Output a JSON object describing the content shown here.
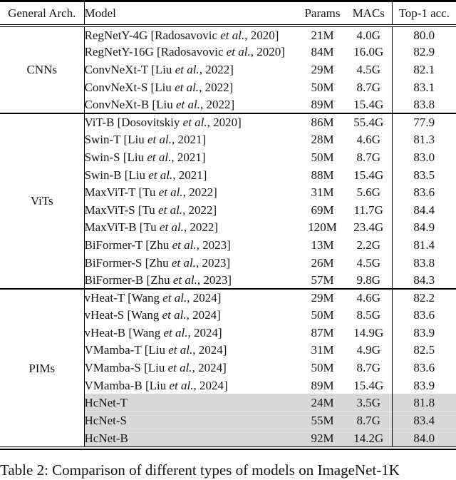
{
  "caption": "Table 2: Comparison of different types of models on ImageNet-1K",
  "citation_format": {
    "et_al": "et al."
  },
  "colors": {
    "highlight_row": "#d8d8d8",
    "rule": "#000000",
    "text": "#151515",
    "background": "#ffffff"
  },
  "table": {
    "headers": {
      "arch": "General Arch.",
      "model": "Model",
      "params": "Params",
      "macs": "MACs",
      "top1": "Top-1 acc."
    },
    "sections": [
      {
        "arch": "CNNs",
        "rows": [
          {
            "model": "RegNetY-4G",
            "author": "Radosavovic",
            "year": "2020",
            "params": "21M",
            "macs": "4.0G",
            "top1": "80.0",
            "highlight": false
          },
          {
            "model": "RegNetY-16G",
            "author": "Radosavovic",
            "year": "2020",
            "params": "84M",
            "macs": "16.0G",
            "top1": "82.9",
            "highlight": false
          },
          {
            "model": "ConvNeXt-T",
            "author": "Liu",
            "year": "2022",
            "params": "29M",
            "macs": "4.5G",
            "top1": "82.1",
            "highlight": false
          },
          {
            "model": "ConvNeXt-S",
            "author": "Liu",
            "year": "2022",
            "params": "50M",
            "macs": "8.7G",
            "top1": "83.1",
            "highlight": false
          },
          {
            "model": "ConvNeXt-B",
            "author": "Liu",
            "year": "2022",
            "params": "89M",
            "macs": "15.4G",
            "top1": "83.8",
            "highlight": false
          }
        ]
      },
      {
        "arch": "ViTs",
        "rows": [
          {
            "model": "ViT-B",
            "author": "Dosovitskiy",
            "year": "2020",
            "params": "86M",
            "macs": "55.4G",
            "top1": "77.9",
            "highlight": false
          },
          {
            "model": "Swin-T",
            "author": "Liu",
            "year": "2021",
            "params": "28M",
            "macs": "4.6G",
            "top1": "81.3",
            "highlight": false
          },
          {
            "model": "Swin-S",
            "author": "Liu",
            "year": "2021",
            "params": "50M",
            "macs": "8.7G",
            "top1": "83.0",
            "highlight": false
          },
          {
            "model": "Swin-B",
            "author": "Liu",
            "year": "2021",
            "params": "88M",
            "macs": "15.4G",
            "top1": "83.5",
            "highlight": false
          },
          {
            "model": "MaxViT-T",
            "author": "Tu",
            "year": "2022",
            "params": "31M",
            "macs": "5.6G",
            "top1": "83.6",
            "highlight": false
          },
          {
            "model": "MaxViT-S",
            "author": "Tu",
            "year": "2022",
            "params": "69M",
            "macs": "11.7G",
            "top1": "84.4",
            "highlight": false
          },
          {
            "model": "MaxViT-B",
            "author": "Tu",
            "year": "2022",
            "params": "120M",
            "macs": "23.4G",
            "top1": "84.9",
            "highlight": false
          },
          {
            "model": "BiFormer-T",
            "author": "Zhu",
            "year": "2023",
            "params": "13M",
            "macs": "2.2G",
            "top1": "81.4",
            "highlight": false
          },
          {
            "model": "BiFormer-S",
            "author": "Zhu",
            "year": "2023",
            "params": "26M",
            "macs": "4.5G",
            "top1": "83.8",
            "highlight": false
          },
          {
            "model": "BiFormer-B",
            "author": "Zhu",
            "year": "2023",
            "params": "57M",
            "macs": "9.8G",
            "top1": "84.3",
            "highlight": false
          }
        ]
      },
      {
        "arch": "PIMs",
        "rows": [
          {
            "model": "vHeat-T",
            "author": "Wang",
            "year": "2024",
            "params": "29M",
            "macs": "4.6G",
            "top1": "82.2",
            "highlight": false
          },
          {
            "model": "vHeat-S",
            "author": "Wang",
            "year": "2024",
            "params": "50M",
            "macs": "8.5G",
            "top1": "83.6",
            "highlight": false
          },
          {
            "model": "vHeat-B",
            "author": "Wang",
            "year": "2024",
            "params": "87M",
            "macs": "14.9G",
            "top1": "83.9",
            "highlight": false
          },
          {
            "model": "VMamba-T",
            "author": "Liu",
            "year": "2024",
            "params": "31M",
            "macs": "4.9G",
            "top1": "82.5",
            "highlight": false
          },
          {
            "model": "VMamba-S",
            "author": "Liu",
            "year": "2024",
            "params": "50M",
            "macs": "8.7G",
            "top1": "83.6",
            "highlight": false
          },
          {
            "model": "VMamba-B",
            "author": "Liu",
            "year": "2024",
            "params": "89M",
            "macs": "15.4G",
            "top1": "83.9",
            "highlight": false
          },
          {
            "model": "HcNet-T",
            "author": "",
            "year": "",
            "params": "24M",
            "macs": "3.5G",
            "top1": "81.8",
            "highlight": true
          },
          {
            "model": "HcNet-S",
            "author": "",
            "year": "",
            "params": "55M",
            "macs": "8.7G",
            "top1": "83.4",
            "highlight": true
          },
          {
            "model": "HcNet-B",
            "author": "",
            "year": "",
            "params": "92M",
            "macs": "14.2G",
            "top1": "84.0",
            "highlight": true
          }
        ]
      }
    ]
  }
}
